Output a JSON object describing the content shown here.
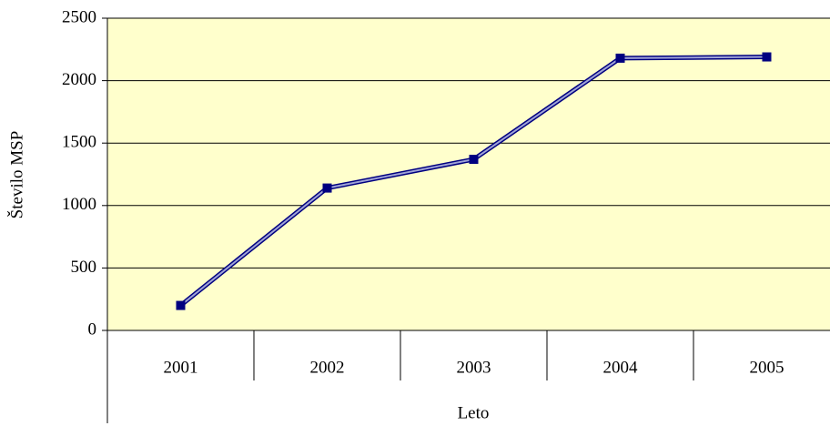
{
  "chart_data": {
    "type": "line",
    "categories": [
      "2001",
      "2002",
      "2003",
      "2004",
      "2005"
    ],
    "series": [
      {
        "name": "Število MSP",
        "color": "#000080",
        "values": [
          200,
          1140,
          1370,
          2180,
          2190
        ]
      }
    ],
    "ylim": [
      0,
      2500
    ],
    "yticks": [
      0,
      500,
      1000,
      1500,
      2000,
      2500
    ],
    "grid": true,
    "ylabel": "Število MSP",
    "xlabel": "Leto",
    "background": "#ffffcc"
  }
}
